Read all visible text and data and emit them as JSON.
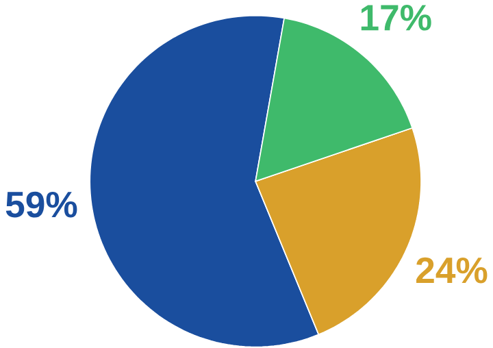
{
  "chart_data": {
    "type": "pie",
    "categories": [
      null,
      null,
      null
    ],
    "values": [
      59,
      24,
      17
    ],
    "colors": [
      "#1a4e9e",
      "#d9a02b",
      "#3fba6b"
    ],
    "value_labels": [
      "59%",
      "24%",
      "17%"
    ]
  }
}
